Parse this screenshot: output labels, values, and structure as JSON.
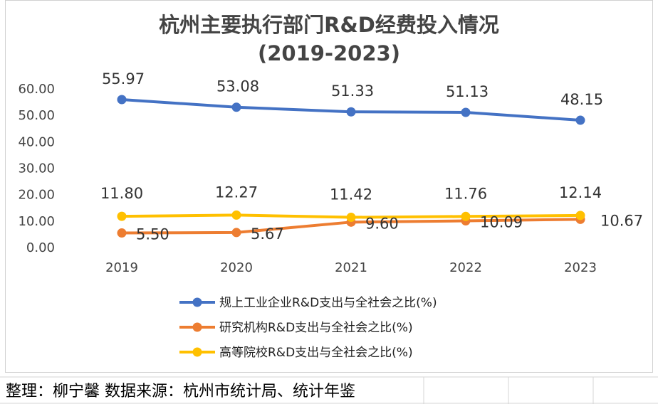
{
  "chart_data": {
    "type": "line",
    "title_lines": [
      "杭州主要执行部门R&D经费投入情况",
      "(2019-2023)"
    ],
    "categories": [
      "2019",
      "2020",
      "2021",
      "2022",
      "2023"
    ],
    "ylim": [
      0,
      60
    ],
    "yticks": [
      "0.00",
      "10.00",
      "20.00",
      "30.00",
      "40.00",
      "50.00",
      "60.00"
    ],
    "grid": false,
    "legend_position": "bottom",
    "series": [
      {
        "name": "规上工业企业R&D支出与全社会之比(%)",
        "color": "#4472c4",
        "values": [
          55.97,
          53.08,
          51.33,
          51.13,
          48.15
        ],
        "labels": [
          "55.97",
          "53.08",
          "51.33",
          "51.13",
          "48.15"
        ]
      },
      {
        "name": "研究机构R&D支出与全社会之比(%)",
        "color": "#ed7d31",
        "values": [
          5.5,
          5.67,
          9.6,
          10.09,
          10.67
        ],
        "labels": [
          "5.50",
          "5.67",
          "9.60",
          "10.09",
          "10.67"
        ]
      },
      {
        "name": "高等院校R&D支出与全社会之比(%)",
        "color": "#ffc000",
        "values": [
          11.8,
          12.27,
          11.42,
          11.76,
          12.14
        ],
        "labels": [
          "11.80",
          "12.27",
          "11.42",
          "11.76",
          "12.14"
        ]
      }
    ]
  },
  "footer": {
    "text": "整理：柳宁馨  数据来源：杭州市统计局、统计年鉴"
  }
}
